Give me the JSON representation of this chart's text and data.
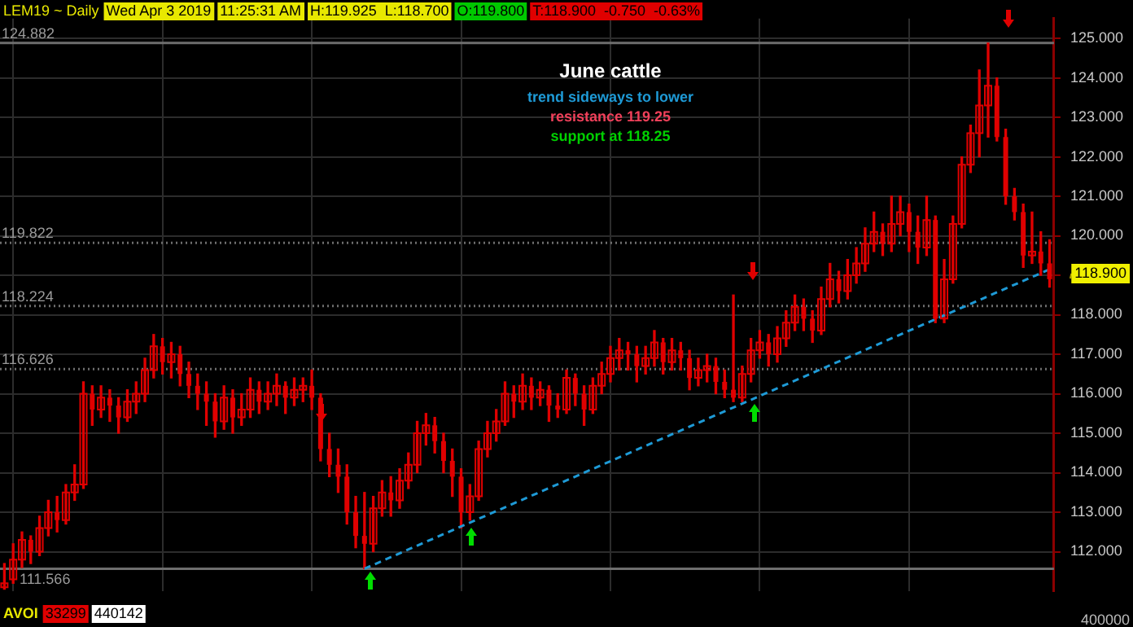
{
  "chart_data": {
    "type": "candlestick",
    "title": "June cattle",
    "categories": [
      null,
      null,
      null,
      null,
      null,
      null,
      null,
      null,
      null,
      null,
      null,
      null,
      null,
      null,
      null,
      null,
      null,
      null,
      null,
      null,
      null,
      null,
      null,
      null,
      null,
      null,
      null,
      null,
      null,
      null,
      null,
      null,
      null,
      null,
      null,
      null,
      null,
      null,
      null,
      null,
      null,
      null,
      null,
      null,
      null,
      null,
      null,
      null,
      null,
      null,
      null,
      null,
      null,
      null,
      null,
      null,
      null,
      null,
      null,
      null,
      null,
      null,
      null,
      null,
      null,
      null,
      null,
      null,
      null,
      null,
      null,
      null,
      null,
      null,
      null,
      null,
      null,
      null,
      null,
      null,
      null,
      null,
      null,
      null,
      null,
      null,
      null,
      null,
      null,
      null,
      null,
      null,
      null,
      null,
      null,
      null,
      null,
      null,
      null,
      null,
      null,
      null,
      null,
      null,
      null,
      null,
      null,
      null,
      null,
      null,
      null,
      null,
      null,
      null,
      null,
      null,
      null,
      null,
      null,
      null
    ],
    "color": "#e00000",
    "ohlc": [
      [
        111.1,
        111.7,
        111.05,
        111.2
      ],
      [
        111.3,
        112.2,
        111.2,
        111.8
      ],
      [
        111.8,
        112.5,
        111.6,
        112.3
      ],
      [
        112.3,
        112.4,
        111.7,
        112.0
      ],
      [
        112.0,
        112.9,
        111.9,
        112.6
      ],
      [
        112.6,
        113.3,
        112.4,
        113.0
      ],
      [
        113.0,
        113.4,
        112.5,
        112.8
      ],
      [
        112.8,
        113.7,
        112.7,
        113.5
      ],
      [
        113.5,
        114.2,
        113.3,
        113.7
      ],
      [
        113.7,
        116.3,
        113.6,
        116.0
      ],
      [
        116.0,
        116.2,
        115.2,
        115.6
      ],
      [
        115.6,
        116.2,
        115.4,
        115.9
      ],
      [
        115.9,
        116.1,
        115.3,
        115.7
      ],
      [
        115.7,
        115.9,
        115.0,
        115.4
      ],
      [
        115.4,
        116.1,
        115.3,
        115.8
      ],
      [
        115.8,
        116.3,
        115.5,
        116.0
      ],
      [
        116.0,
        116.9,
        115.8,
        116.6
      ],
      [
        116.6,
        117.5,
        116.4,
        117.2
      ],
      [
        117.2,
        117.4,
        116.5,
        116.8
      ],
      [
        116.8,
        117.3,
        116.4,
        117.0
      ],
      [
        117.0,
        117.2,
        116.2,
        116.5
      ],
      [
        116.5,
        116.8,
        115.9,
        116.2
      ],
      [
        116.2,
        116.5,
        115.6,
        116.0
      ],
      [
        116.0,
        116.3,
        115.2,
        115.8
      ],
      [
        115.8,
        116.0,
        114.9,
        115.3
      ],
      [
        115.3,
        116.2,
        115.1,
        115.9
      ],
      [
        115.9,
        116.1,
        115.0,
        115.4
      ],
      [
        115.4,
        116.0,
        115.2,
        115.6
      ],
      [
        115.6,
        116.4,
        115.4,
        116.1
      ],
      [
        116.1,
        116.3,
        115.5,
        115.8
      ],
      [
        115.8,
        116.3,
        115.6,
        116.0
      ],
      [
        116.0,
        116.5,
        115.7,
        116.2
      ],
      [
        116.2,
        116.3,
        115.5,
        115.9
      ],
      [
        115.9,
        116.4,
        115.7,
        116.1
      ],
      [
        116.1,
        116.4,
        115.8,
        116.2
      ],
      [
        116.2,
        116.6,
        115.6,
        115.9
      ],
      [
        115.9,
        116.0,
        114.3,
        114.6
      ],
      [
        114.6,
        115.0,
        113.9,
        114.2
      ],
      [
        114.2,
        114.6,
        113.5,
        113.9
      ],
      [
        113.9,
        114.2,
        112.7,
        113.0
      ],
      [
        113.0,
        113.4,
        112.1,
        112.4
      ],
      [
        112.4,
        113.5,
        111.57,
        112.2
      ],
      [
        112.2,
        113.4,
        112.0,
        113.1
      ],
      [
        113.1,
        113.8,
        112.9,
        113.5
      ],
      [
        113.5,
        113.9,
        112.9,
        113.3
      ],
      [
        113.3,
        114.1,
        113.1,
        113.8
      ],
      [
        113.8,
        114.5,
        113.6,
        114.2
      ],
      [
        114.2,
        115.3,
        114.0,
        115.0
      ],
      [
        115.0,
        115.5,
        114.7,
        115.2
      ],
      [
        115.2,
        115.4,
        114.5,
        114.8
      ],
      [
        114.8,
        115.0,
        114.0,
        114.3
      ],
      [
        114.3,
        114.6,
        113.4,
        113.9
      ],
      [
        113.9,
        114.1,
        112.6,
        113.0
      ],
      [
        113.0,
        113.7,
        112.8,
        113.4
      ],
      [
        113.4,
        114.8,
        113.3,
        114.6
      ],
      [
        114.6,
        115.3,
        114.4,
        115.0
      ],
      [
        115.0,
        115.6,
        114.8,
        115.3
      ],
      [
        115.3,
        116.3,
        115.2,
        116.0
      ],
      [
        116.0,
        116.2,
        115.4,
        115.8
      ],
      [
        115.8,
        116.5,
        115.6,
        116.2
      ],
      [
        116.2,
        116.4,
        115.6,
        115.9
      ],
      [
        115.9,
        116.3,
        115.7,
        116.1
      ],
      [
        116.1,
        116.2,
        115.3,
        115.7
      ],
      [
        115.7,
        116.0,
        115.4,
        115.6
      ],
      [
        115.6,
        116.6,
        115.5,
        116.4
      ],
      [
        116.4,
        116.5,
        115.7,
        116.0
      ],
      [
        116.0,
        116.2,
        115.2,
        115.6
      ],
      [
        115.6,
        116.4,
        115.5,
        116.2
      ],
      [
        116.2,
        116.8,
        116.0,
        116.5
      ],
      [
        116.5,
        117.2,
        116.3,
        116.9
      ],
      [
        116.9,
        117.4,
        116.6,
        117.1
      ],
      [
        117.1,
        117.3,
        116.6,
        117.0
      ],
      [
        117.0,
        117.2,
        116.3,
        116.7
      ],
      [
        116.7,
        117.2,
        116.5,
        116.9
      ],
      [
        116.9,
        117.6,
        116.7,
        117.3
      ],
      [
        117.3,
        117.4,
        116.5,
        116.8
      ],
      [
        116.8,
        117.4,
        116.6,
        117.1
      ],
      [
        117.1,
        117.3,
        116.6,
        116.9
      ],
      [
        116.9,
        117.1,
        116.1,
        116.4
      ],
      [
        116.4,
        116.9,
        116.2,
        116.6
      ],
      [
        116.6,
        117.0,
        116.3,
        116.7
      ],
      [
        116.7,
        116.9,
        116.0,
        116.3
      ],
      [
        116.3,
        116.6,
        115.9,
        116.1
      ],
      [
        116.1,
        118.5,
        115.8,
        115.9
      ],
      [
        115.9,
        116.7,
        115.8,
        116.5
      ],
      [
        116.5,
        117.4,
        116.3,
        117.1
      ],
      [
        117.1,
        117.6,
        116.9,
        117.3
      ],
      [
        117.3,
        117.5,
        116.7,
        117.0
      ],
      [
        117.0,
        117.7,
        116.8,
        117.4
      ],
      [
        117.4,
        118.1,
        117.2,
        117.8
      ],
      [
        117.8,
        118.5,
        117.6,
        118.2
      ],
      [
        118.2,
        118.4,
        117.6,
        117.9
      ],
      [
        117.9,
        118.1,
        117.3,
        117.6
      ],
      [
        117.6,
        118.7,
        117.5,
        118.4
      ],
      [
        118.4,
        119.3,
        118.2,
        118.9
      ],
      [
        118.9,
        119.1,
        118.3,
        118.6
      ],
      [
        118.6,
        119.4,
        118.4,
        119.0
      ],
      [
        119.0,
        119.7,
        118.8,
        119.3
      ],
      [
        119.3,
        120.2,
        119.1,
        119.8
      ],
      [
        119.8,
        120.6,
        119.6,
        120.1
      ],
      [
        120.1,
        120.3,
        119.5,
        119.8
      ],
      [
        119.8,
        121.0,
        119.6,
        120.3
      ],
      [
        120.3,
        121.0,
        120.0,
        120.6
      ],
      [
        120.6,
        120.8,
        119.6,
        120.1
      ],
      [
        120.1,
        120.5,
        119.3,
        119.7
      ],
      [
        119.7,
        121.0,
        119.5,
        120.4
      ],
      [
        120.4,
        120.5,
        117.8,
        117.9
      ],
      [
        117.9,
        119.4,
        117.8,
        118.9
      ],
      [
        118.9,
        120.5,
        118.8,
        120.3
      ],
      [
        120.3,
        122.0,
        120.2,
        121.8
      ],
      [
        121.8,
        122.8,
        121.6,
        122.6
      ],
      [
        122.6,
        124.2,
        122.0,
        123.3
      ],
      [
        123.3,
        124.88,
        122.5,
        123.8
      ],
      [
        123.8,
        124.0,
        122.4,
        122.5
      ],
      [
        122.5,
        122.7,
        120.8,
        121.0
      ],
      [
        121.0,
        121.2,
        120.4,
        120.6
      ],
      [
        120.6,
        120.8,
        119.2,
        119.5
      ],
      [
        119.5,
        120.6,
        119.3,
        119.6
      ],
      [
        119.6,
        120.1,
        119.0,
        119.3
      ],
      [
        119.3,
        119.9,
        118.7,
        118.9
      ]
    ],
    "series": [
      {
        "type": "line",
        "color": "#1e9ad6",
        "line_style": "dashed",
        "values": [
          null,
          null,
          null,
          null,
          null,
          null,
          null,
          null,
          null,
          null,
          null,
          null,
          null,
          null,
          null,
          null,
          null,
          null,
          null,
          null,
          null,
          null,
          null,
          null,
          null,
          null,
          null,
          null,
          null,
          null,
          null,
          null,
          null,
          null,
          null,
          null,
          null,
          null,
          null,
          null,
          null,
          111.57,
          null,
          null,
          null,
          null,
          null,
          null,
          null,
          null,
          null,
          null,
          null,
          null,
          null,
          null,
          null,
          null,
          null,
          null,
          null,
          null,
          null,
          null,
          null,
          null,
          null,
          null,
          null,
          null,
          null,
          null,
          null,
          null,
          null,
          null,
          null,
          null,
          null,
          null,
          null,
          null,
          null,
          null,
          null,
          null,
          null,
          null,
          null,
          null,
          null,
          null,
          null,
          null,
          null,
          null,
          null,
          null,
          null,
          null,
          null,
          null,
          null,
          null,
          null,
          null,
          null,
          null,
          null,
          null,
          null,
          null,
          null,
          null,
          null,
          null,
          null,
          null,
          null,
          119.15
        ]
      }
    ],
    "ylim": [
      111,
      125.5
    ],
    "yticks": [
      {
        "value": 112,
        "label": "112.000"
      },
      {
        "value": 113,
        "label": "113.000"
      },
      {
        "value": 114,
        "label": "114.000"
      },
      {
        "value": 115,
        "label": "115.000"
      },
      {
        "value": 116,
        "label": "116.000"
      },
      {
        "value": 117,
        "label": "117.000"
      },
      {
        "value": 118,
        "label": "118.000"
      },
      {
        "value": 119,
        "label": null
      },
      {
        "value": 120,
        "label": "120.000"
      },
      {
        "value": 121,
        "label": "121.000"
      },
      {
        "value": 122,
        "label": "122.000"
      },
      {
        "value": 123,
        "label": "123.000"
      },
      {
        "value": 124,
        "label": "124.000"
      },
      {
        "value": 125,
        "label": "125.000"
      }
    ],
    "grid": true,
    "legend": false,
    "ref_lines": [
      {
        "axis": "y",
        "value": 124.882,
        "label": "124.882",
        "color": "#6e6e6e"
      },
      {
        "axis": "y",
        "value": 119.822,
        "label": "119.822",
        "color": "#6e6e6e",
        "line_style": "dotted"
      },
      {
        "axis": "y",
        "value": 118.224,
        "label": "118.224",
        "color": "#6e6e6e",
        "line_style": "dotted"
      },
      {
        "axis": "y",
        "value": 116.626,
        "label": "116.626",
        "color": "#6e6e6e",
        "line_style": "dotted"
      },
      {
        "axis": "y",
        "value": 111.566,
        "label": "111.566",
        "color": "#6e6e6e"
      }
    ],
    "annotations": [
      "LEM19 ~ Daily",
      "Wed Apr 3 2019",
      "11:25:31 AM",
      "H:119.925  L:118.700",
      "O:119.800",
      "T:118.900  -0.750  -0.63%",
      "trend sideways to lower",
      "resistance 119.25",
      "support at 118.25",
      "AVOI",
      "33299",
      "440142",
      "400000",
      "118.900"
    ]
  }
}
